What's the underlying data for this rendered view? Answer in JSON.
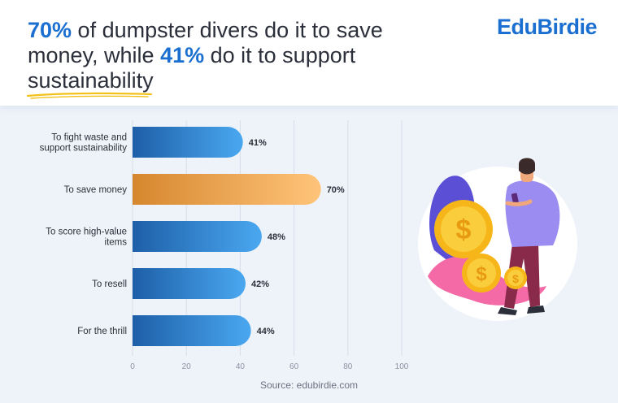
{
  "header": {
    "headline_pct1": "70%",
    "headline_mid": " of dumpster divers do it to save money, while ",
    "headline_pct2": "41%",
    "headline_end": " do it to support ",
    "headline_underlined": "sustainability",
    "logo": "EduBirdie"
  },
  "source": "Source: edubirdie.com",
  "colors": {
    "accent": "#1a6fd0",
    "blue_bar_start": "#1d5fa8",
    "blue_bar_end": "#4aa8f0",
    "orange_bar_start": "#d6872e",
    "orange_bar_end": "#ffc47a",
    "underline": "#f2c21b"
  },
  "chart_data": {
    "type": "bar",
    "orientation": "horizontal",
    "categories": [
      "To fight waste and support sustainability",
      "To save money",
      "To score high-value items",
      "To resell",
      "For the thrill"
    ],
    "category_lines": [
      [
        "To fight waste and",
        "support sustainability"
      ],
      [
        "To save money"
      ],
      [
        "To score high-value",
        "items"
      ],
      [
        "To resell"
      ],
      [
        "For the thrill"
      ]
    ],
    "values": [
      41,
      70,
      48,
      42,
      44
    ],
    "value_labels": [
      "41%",
      "70%",
      "48%",
      "42%",
      "44%"
    ],
    "highlight_index": 1,
    "xlim": [
      0,
      100
    ],
    "xticks": [
      0,
      20,
      40,
      60,
      80,
      100
    ],
    "grid": true,
    "title": "",
    "xlabel": "",
    "ylabel": ""
  }
}
